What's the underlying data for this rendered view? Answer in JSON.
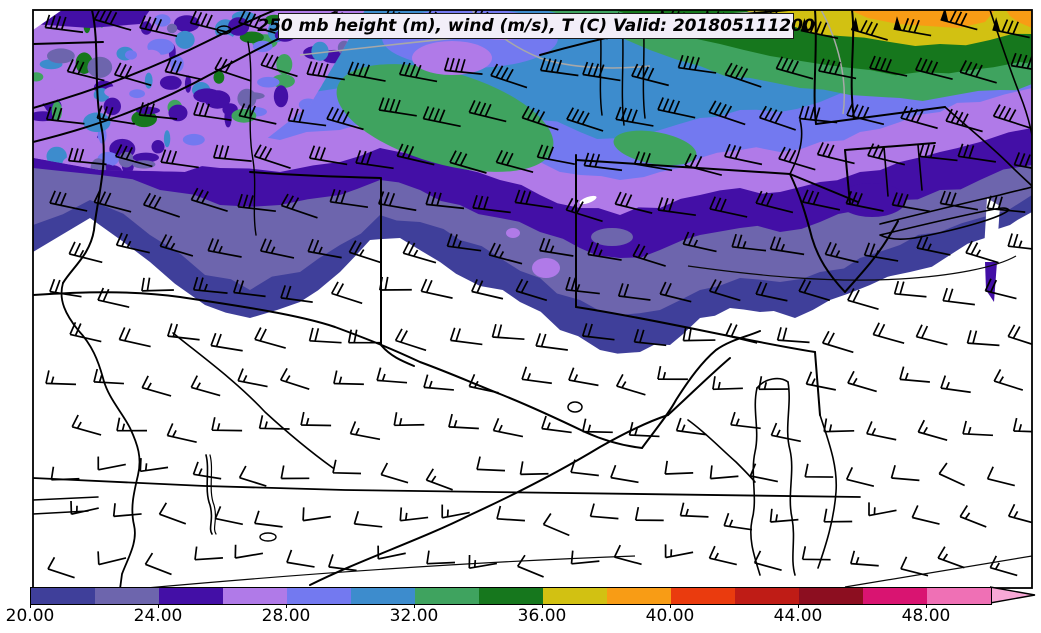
{
  "title": {
    "text": "250 mb height (m), wind (m/s), T (C) Valid: 201805111200",
    "level": "250 mb",
    "variables": "height (m), wind (m/s), T (C)",
    "valid_label": "Valid:",
    "valid_time": "201805111200",
    "background": "#f2eef8",
    "border_color": "#1a1a1a"
  },
  "map": {
    "frame_color": "#000000",
    "land_color": "#ffffff",
    "state_border_color": "#000000",
    "height_contour_color": "#a8a8a8",
    "thin_contour_color": "#0a0a0a",
    "wind_barb_color": "#000000",
    "band_colors": {
      "c20": "#3f3f9a",
      "c22": "#6d65ad",
      "c24": "#430fa6",
      "c26": "#b07ae8",
      "c28": "#7379f0",
      "c30": "#3d8ccd",
      "c32": "#3fa35f",
      "c34": "#16771d",
      "c36": "#d2c112",
      "c38": "#f89c15",
      "c40": "#ea3b0e",
      "c42": "#bf1c16",
      "c44": "#8c0e20",
      "c46": "#d91471",
      "c48": "#ef70b5"
    }
  },
  "colorbar": {
    "ticks": [
      "20.00",
      "24.00",
      "28.00",
      "32.00",
      "36.00",
      "40.00",
      "44.00",
      "48.00"
    ],
    "tick_values": [
      20,
      24,
      28,
      32,
      36,
      40,
      44,
      48
    ],
    "range_min": 20,
    "range_max": 50,
    "step": 2,
    "segment_colors": [
      "#3f3f9a",
      "#6d65ad",
      "#430fa6",
      "#b07ae8",
      "#7379f0",
      "#3d8ccd",
      "#3fa35f",
      "#16771d",
      "#d2c112",
      "#f89c15",
      "#ea3b0e",
      "#bf1c16",
      "#8c0e20",
      "#d91471",
      "#ef70b5"
    ],
    "arrow_color": "#f8a9d6",
    "outline_color": "#000000"
  },
  "chart_data": {
    "type": "heatmap",
    "title": "250 mb height (m), wind (m/s), T (C) Valid: 201805111200",
    "legend_ticks": [
      20,
      24,
      28,
      32,
      36,
      40,
      44,
      48
    ],
    "legend_tick_labels": [
      "20.00",
      "24.00",
      "28.00",
      "32.00",
      "36.00",
      "40.00",
      "44.00",
      "48.00"
    ],
    "legend_range": [
      20,
      50
    ],
    "legend_step": 2,
    "palette": [
      "#3f3f9a",
      "#6d65ad",
      "#430fa6",
      "#b07ae8",
      "#7379f0",
      "#3d8ccd",
      "#3fa35f",
      "#16771d",
      "#d2c112",
      "#f89c15",
      "#ea3b0e",
      "#bf1c16",
      "#8c0e20",
      "#d91471",
      "#ef70b5"
    ],
    "over_range_arrow_color": "#f8a9d6",
    "notes_visible_on_screen": "Filled contours increase from white (south) through purples and blues to greens, yellow and orange toward the north and northeast; wind barbs strongest in the north."
  }
}
